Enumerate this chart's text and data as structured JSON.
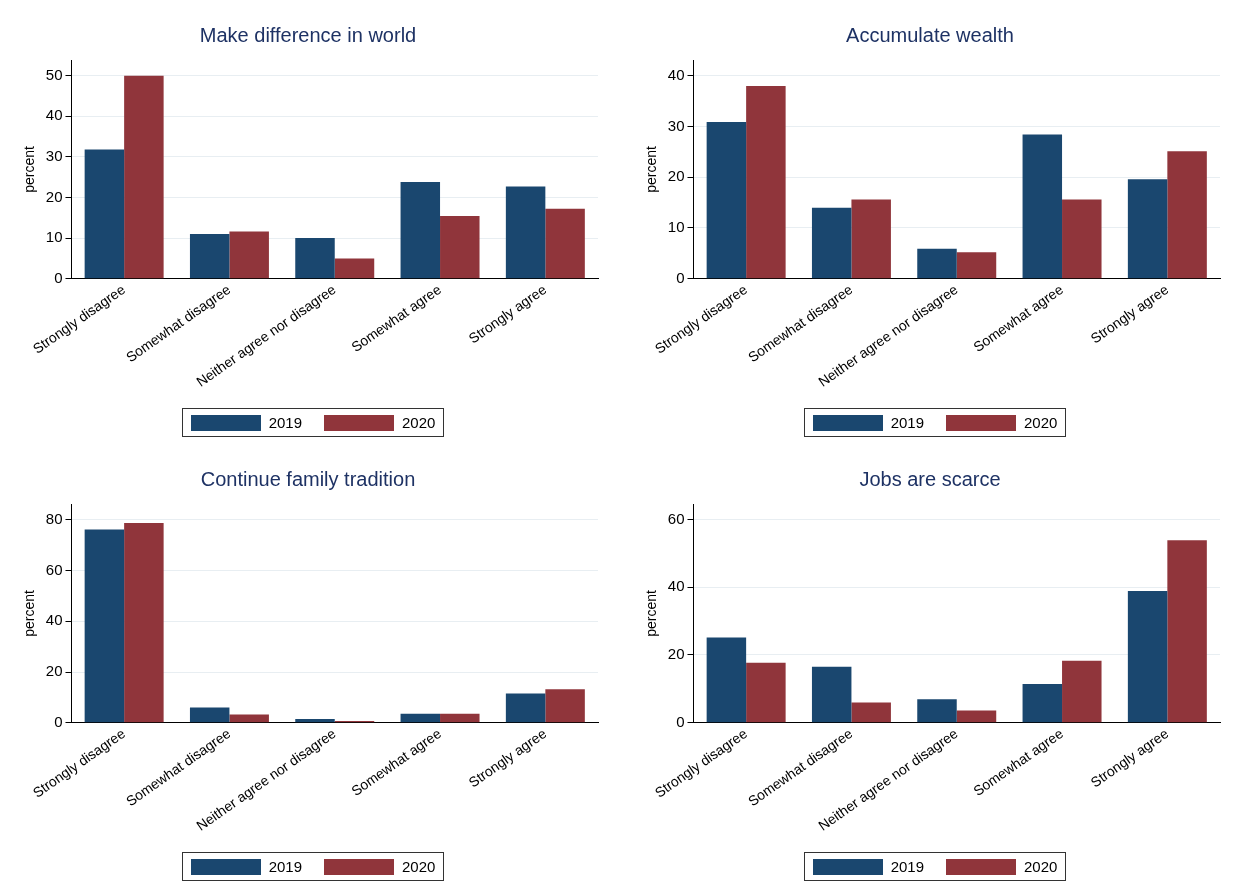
{
  "chart_data": [
    {
      "type": "bar",
      "title": "Make difference in world",
      "ylabel": "percent",
      "categories": [
        "Strongly disagree",
        "Somewhat disagree",
        "Neither agree nor disagree",
        "Somewhat agree",
        "Strongly agree"
      ],
      "series": [
        {
          "name": "2019",
          "color": "#1a476f",
          "values": [
            31.8,
            11.0,
            10.0,
            23.8,
            22.7
          ]
        },
        {
          "name": "2020",
          "color": "#90353b",
          "values": [
            49.9,
            11.6,
            5.0,
            15.4,
            17.2
          ]
        }
      ],
      "ylim": [
        0,
        53.8
      ],
      "yticks": [
        0,
        10,
        20,
        30,
        40,
        50
      ],
      "grid": "y",
      "legend": "bottom"
    },
    {
      "type": "bar",
      "title": "Accumulate wealth",
      "ylabel": "percent",
      "categories": [
        "Strongly disagree",
        "Somewhat disagree",
        "Neither agree nor disagree",
        "Somewhat agree",
        "Strongly agree"
      ],
      "series": [
        {
          "name": "2019",
          "color": "#1a476f",
          "values": [
            30.9,
            14.0,
            5.9,
            28.4,
            19.6
          ]
        },
        {
          "name": "2020",
          "color": "#90353b",
          "values": [
            38.0,
            15.6,
            5.2,
            15.6,
            25.1
          ]
        }
      ],
      "ylim": [
        0,
        43.1
      ],
      "yticks": [
        0,
        10,
        20,
        30,
        40
      ],
      "grid": "y",
      "legend": "bottom"
    },
    {
      "type": "bar",
      "title": "Continue family tradition",
      "ylabel": "percent",
      "categories": [
        "Strongly disagree",
        "Somewhat disagree",
        "Neither agree nor disagree",
        "Somewhat agree",
        "Strongly agree"
      ],
      "series": [
        {
          "name": "2019",
          "color": "#1a476f",
          "values": [
            76.2,
            6.0,
            1.5,
            3.5,
            11.5
          ]
        },
        {
          "name": "2020",
          "color": "#90353b",
          "values": [
            78.8,
            3.2,
            0.7,
            3.5,
            13.2
          ]
        }
      ],
      "ylim": [
        0,
        86.3
      ],
      "yticks": [
        0,
        20,
        40,
        60,
        80
      ],
      "grid": "y",
      "legend": "bottom"
    },
    {
      "type": "bar",
      "title": "Jobs are scarce",
      "ylabel": "percent",
      "categories": [
        "Strongly disagree",
        "Somewhat disagree",
        "Neither agree nor disagree",
        "Somewhat agree",
        "Strongly agree"
      ],
      "series": [
        {
          "name": "2019",
          "color": "#1a476f",
          "values": [
            25.2,
            16.5,
            6.9,
            11.4,
            38.9
          ]
        },
        {
          "name": "2020",
          "color": "#90353b",
          "values": [
            17.7,
            6.0,
            3.6,
            18.3,
            53.9
          ]
        }
      ],
      "ylim": [
        0,
        64.6
      ],
      "yticks": [
        0,
        20,
        40,
        60
      ],
      "grid": "y",
      "legend": "bottom"
    }
  ]
}
